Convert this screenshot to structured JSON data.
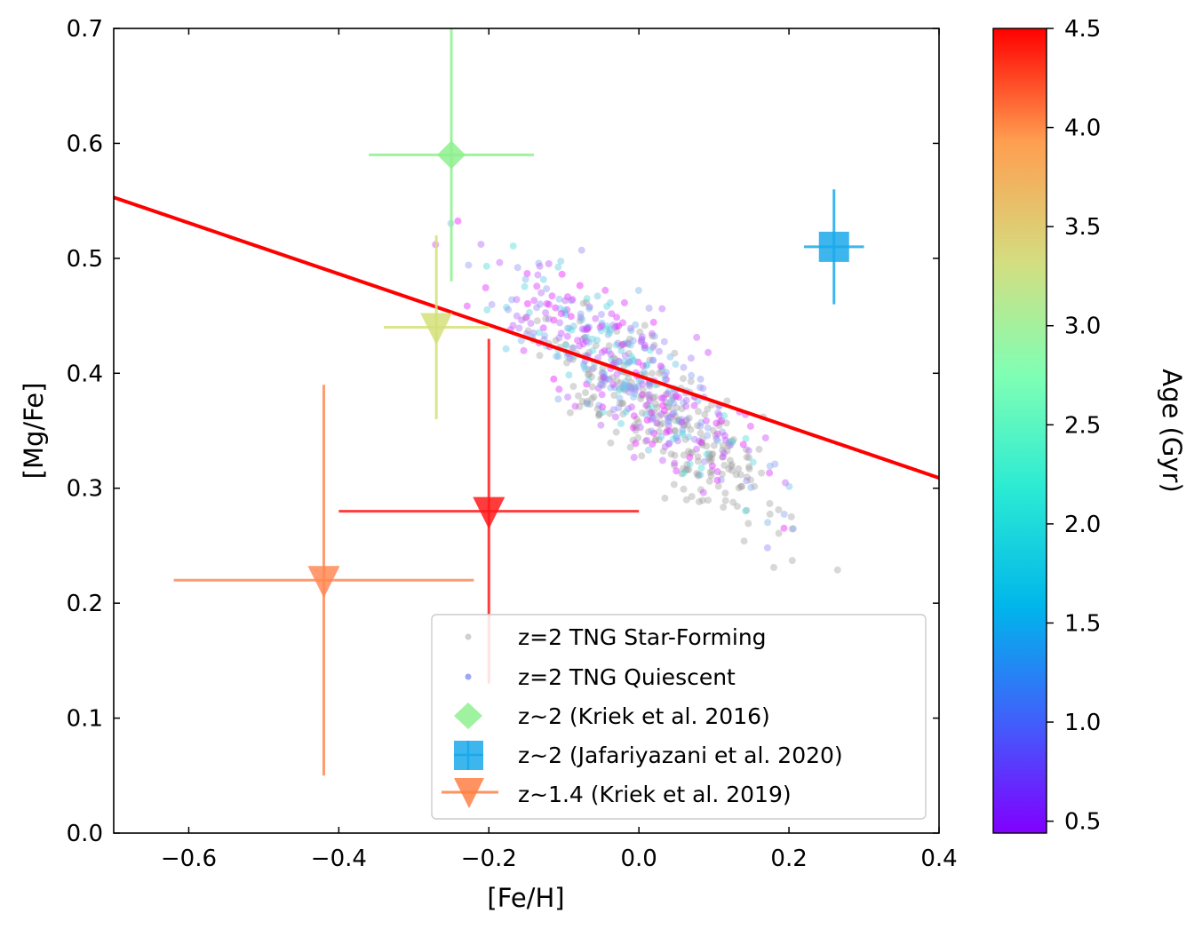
{
  "chart_data": {
    "type": "scatter",
    "xlabel": "[Fe/H]",
    "ylabel": "[Mg/Fe]",
    "xlim": [
      -0.7,
      0.4
    ],
    "ylim": [
      0.0,
      0.7
    ],
    "xticks": [
      -0.6,
      -0.4,
      -0.2,
      0.0,
      0.2,
      0.4
    ],
    "xtick_labels": [
      "−0.6",
      "−0.4",
      "−0.2",
      "0.0",
      "0.2",
      "0.4"
    ],
    "yticks": [
      0.0,
      0.1,
      0.2,
      0.3,
      0.4,
      0.5,
      0.6,
      0.7
    ],
    "ytick_labels": [
      "0.0",
      "0.1",
      "0.2",
      "0.3",
      "0.4",
      "0.5",
      "0.6",
      "0.7"
    ],
    "grid": false,
    "legend_position": "lower-right",
    "fit_line": {
      "color": "#ff0000",
      "x": [
        -0.7,
        0.4
      ],
      "y": [
        0.553,
        0.309
      ]
    },
    "colorbar": {
      "label": "Age (Gyr)",
      "range": [
        0.44,
        4.5
      ],
      "ticks": [
        0.5,
        1.0,
        1.5,
        2.0,
        2.5,
        3.0,
        3.5,
        4.0,
        4.5
      ],
      "tick_labels": [
        "0.5",
        "1.0",
        "1.5",
        "2.0",
        "2.5",
        "3.0",
        "3.5",
        "4.0",
        "4.5"
      ],
      "colormap": "rainbow"
    },
    "series": [
      {
        "name": "z=2 TNG Star-Forming",
        "kind": "cloud",
        "color": "#999999",
        "center": [
          0.03,
          0.36
        ],
        "spread": [
          0.085,
          0.026
        ],
        "slope": -0.45,
        "count": 260
      },
      {
        "name": "z=2 TNG Quiescent",
        "kind": "cloud",
        "color_by_age": true,
        "center": [
          -0.02,
          0.405
        ],
        "spread": [
          0.085,
          0.028
        ],
        "slope": -0.45,
        "count": 420
      },
      {
        "name": "z~2 (Kriek et al. 2016)",
        "kind": "errorpoint",
        "marker": "diamond",
        "color": "#8ef08e",
        "x": -0.25,
        "y": 0.59,
        "xerr": [
          0.11,
          0.11
        ],
        "yerr": [
          0.11,
          0.11
        ]
      },
      {
        "name": "z~2 (Jafariyazani et al. 2020)",
        "kind": "errorpoint",
        "marker": "square",
        "color": "#1aa9ea",
        "x": 0.26,
        "y": 0.51,
        "xerr": [
          0.04,
          0.04
        ],
        "yerr": [
          0.05,
          0.05
        ]
      },
      {
        "name": "z~1.4 (Kriek et al. 2019)",
        "kind": "errorpoint",
        "marker": "triangle-down",
        "color": "#ff7f45",
        "points": [
          {
            "x": -0.27,
            "y": 0.44,
            "xerr": [
              0.07,
              0.07
            ],
            "yerr": [
              0.08,
              0.08
            ],
            "color": "#d4e07a"
          },
          {
            "x": -0.2,
            "y": 0.28,
            "xerr": [
              0.2,
              0.2
            ],
            "yerr": [
              0.15,
              0.15
            ],
            "color": "#ff1a1a"
          },
          {
            "x": -0.42,
            "y": 0.22,
            "xerr": [
              0.2,
              0.2
            ],
            "yerr": [
              0.17,
              0.17
            ],
            "color": "#ff8a55"
          }
        ]
      }
    ]
  }
}
